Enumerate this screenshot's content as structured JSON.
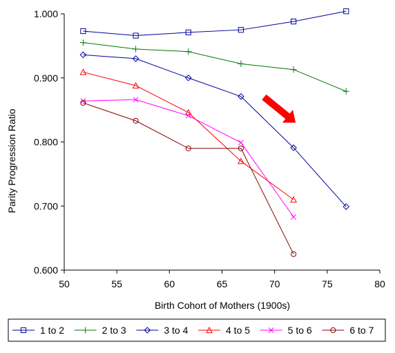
{
  "chart_data": {
    "type": "line",
    "title": "",
    "xlabel": "Birth Cohort of Mothers (1900s)",
    "ylabel": "Parity Progression Ratio",
    "xlim": [
      50,
      80
    ],
    "ylim": [
      0.6,
      1.0
    ],
    "x_ticks": [
      50,
      55,
      60,
      65,
      70,
      75,
      80
    ],
    "x_tick_labels": [
      "50",
      "55",
      "60",
      "65",
      "70",
      "75",
      "80"
    ],
    "y_ticks": [
      0.6,
      0.7,
      0.8,
      0.9,
      1.0
    ],
    "y_tick_labels": [
      "0.600",
      "0.700",
      "0.800",
      "0.900",
      "1.000"
    ],
    "grid": false,
    "legend_position": "bottom",
    "annotation": {
      "type": "arrow",
      "color": "#ff0000",
      "from": [
        69,
        0.87
      ],
      "to": [
        72,
        0.83
      ]
    },
    "series": [
      {
        "name": "1 to 2",
        "color": "#000099",
        "marker": "square",
        "x": [
          51.8,
          56.8,
          61.8,
          66.8,
          71.8,
          76.8
        ],
        "values": [
          0.973,
          0.966,
          0.971,
          0.975,
          0.988,
          1.004
        ]
      },
      {
        "name": "2 to 3",
        "color": "#007700",
        "marker": "plus",
        "x": [
          51.8,
          56.8,
          61.8,
          66.8,
          71.8,
          76.8
        ],
        "values": [
          0.955,
          0.945,
          0.941,
          0.922,
          0.913,
          0.879
        ]
      },
      {
        "name": "3 to 4",
        "color": "#000099",
        "marker": "diamond",
        "x": [
          51.8,
          56.8,
          61.8,
          66.8,
          71.8,
          76.8
        ],
        "values": [
          0.936,
          0.93,
          0.9,
          0.871,
          0.791,
          0.699
        ]
      },
      {
        "name": "4 to 5",
        "color": "#ff0000",
        "marker": "triangle",
        "x": [
          51.8,
          56.8,
          61.8,
          66.8,
          71.8
        ],
        "values": [
          0.909,
          0.888,
          0.846,
          0.77,
          0.71
        ]
      },
      {
        "name": "5 to 6",
        "color": "#ff00ff",
        "marker": "x",
        "x": [
          51.8,
          56.8,
          61.8,
          66.8,
          71.8
        ],
        "values": [
          0.864,
          0.866,
          0.841,
          0.799,
          0.683
        ]
      },
      {
        "name": "6 to 7",
        "color": "#880000",
        "marker": "circle",
        "x": [
          51.8,
          56.8,
          61.8,
          66.8,
          71.8
        ],
        "values": [
          0.861,
          0.833,
          0.79,
          0.79,
          0.625
        ]
      }
    ]
  }
}
